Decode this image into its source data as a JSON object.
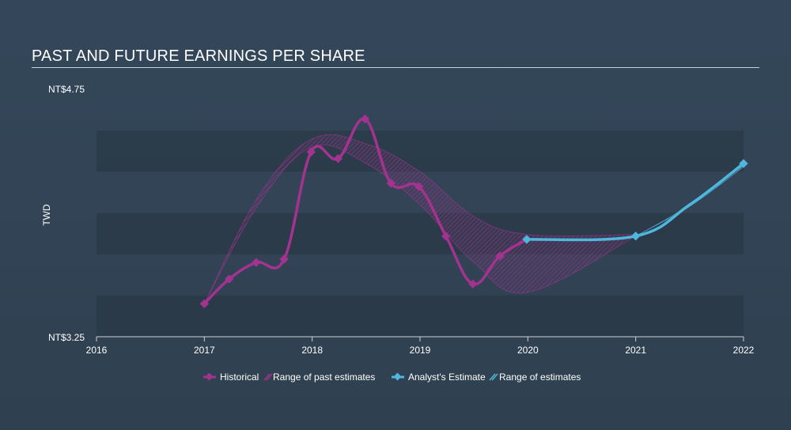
{
  "chart_data": {
    "type": "line",
    "title": "PAST AND FUTURE EARNINGS PER SHARE",
    "ylabel": "TWD",
    "xlabel": "",
    "y_min_label": "NT$3.25",
    "y_max_label": "NT$4.75",
    "ylim": [
      3.25,
      4.75
    ],
    "xlim": [
      2016.0,
      2022.0
    ],
    "x_ticks": [
      {
        "value": 2016,
        "label": "2016"
      },
      {
        "value": 2017,
        "label": "2017"
      },
      {
        "value": 2018,
        "label": "2018"
      },
      {
        "value": 2019,
        "label": "2019"
      },
      {
        "value": 2020,
        "label": "2020"
      },
      {
        "value": 2021,
        "label": "2021"
      },
      {
        "value": 2022,
        "label": "2022"
      }
    ],
    "series": [
      {
        "name": "Historical",
        "color": "#a3338f",
        "points": [
          {
            "x": 2017.0,
            "y": 3.45
          },
          {
            "x": 2017.23,
            "y": 3.6
          },
          {
            "x": 2017.48,
            "y": 3.7
          },
          {
            "x": 2017.74,
            "y": 3.72
          },
          {
            "x": 2017.99,
            "y": 4.37
          },
          {
            "x": 2018.24,
            "y": 4.33
          },
          {
            "x": 2018.49,
            "y": 4.57
          },
          {
            "x": 2018.73,
            "y": 4.18
          },
          {
            "x": 2018.99,
            "y": 4.16
          },
          {
            "x": 2019.24,
            "y": 3.86
          },
          {
            "x": 2019.49,
            "y": 3.57
          },
          {
            "x": 2019.74,
            "y": 3.74
          },
          {
            "x": 2019.99,
            "y": 3.84
          }
        ]
      },
      {
        "name": "Analyst's Estimate",
        "color": "#4fb6dc",
        "points": [
          {
            "x": 2019.99,
            "y": 3.84
          },
          {
            "x": 2021.0,
            "y": 3.86
          },
          {
            "x": 2021.5,
            "y": 4.05
          },
          {
            "x": 2022.0,
            "y": 4.3
          }
        ]
      }
    ],
    "past_estimate_range": {
      "name": "Range of past estimates",
      "upper": [
        {
          "x": 2017.0,
          "y": 3.45
        },
        {
          "x": 2017.5,
          "y": 4.1
        },
        {
          "x": 2018.0,
          "y": 4.45
        },
        {
          "x": 2018.5,
          "y": 4.42
        },
        {
          "x": 2019.0,
          "y": 4.25
        },
        {
          "x": 2019.5,
          "y": 3.98
        },
        {
          "x": 2020.0,
          "y": 3.87
        },
        {
          "x": 2021.0,
          "y": 3.87
        }
      ],
      "lower": [
        {
          "x": 2017.0,
          "y": 3.45
        },
        {
          "x": 2017.5,
          "y": 4.05
        },
        {
          "x": 2018.0,
          "y": 4.4
        },
        {
          "x": 2018.5,
          "y": 4.3
        },
        {
          "x": 2019.0,
          "y": 4.05
        },
        {
          "x": 2019.5,
          "y": 3.7
        },
        {
          "x": 2020.0,
          "y": 3.52
        },
        {
          "x": 2021.0,
          "y": 3.86
        }
      ]
    },
    "future_estimate_range": {
      "name": "Range of estimates",
      "upper": [
        {
          "x": 2021.0,
          "y": 3.86
        },
        {
          "x": 2021.5,
          "y": 4.05
        },
        {
          "x": 2022.0,
          "y": 4.31
        }
      ],
      "lower": [
        {
          "x": 2021.0,
          "y": 3.86
        },
        {
          "x": 2021.5,
          "y": 4.04
        },
        {
          "x": 2022.0,
          "y": 4.28
        }
      ]
    },
    "legend": {
      "position": "bottom-center",
      "items": [
        {
          "label": "Historical",
          "kind": "line-marker",
          "color": "#a3338f"
        },
        {
          "label": "Range of past estimates",
          "kind": "hatch",
          "color": "#a3338f"
        },
        {
          "label": "Analyst's Estimate",
          "kind": "line-marker",
          "color": "#4fb6dc"
        },
        {
          "label": "Range of estimates",
          "kind": "hatch",
          "color": "#4fb6dc"
        }
      ]
    }
  }
}
